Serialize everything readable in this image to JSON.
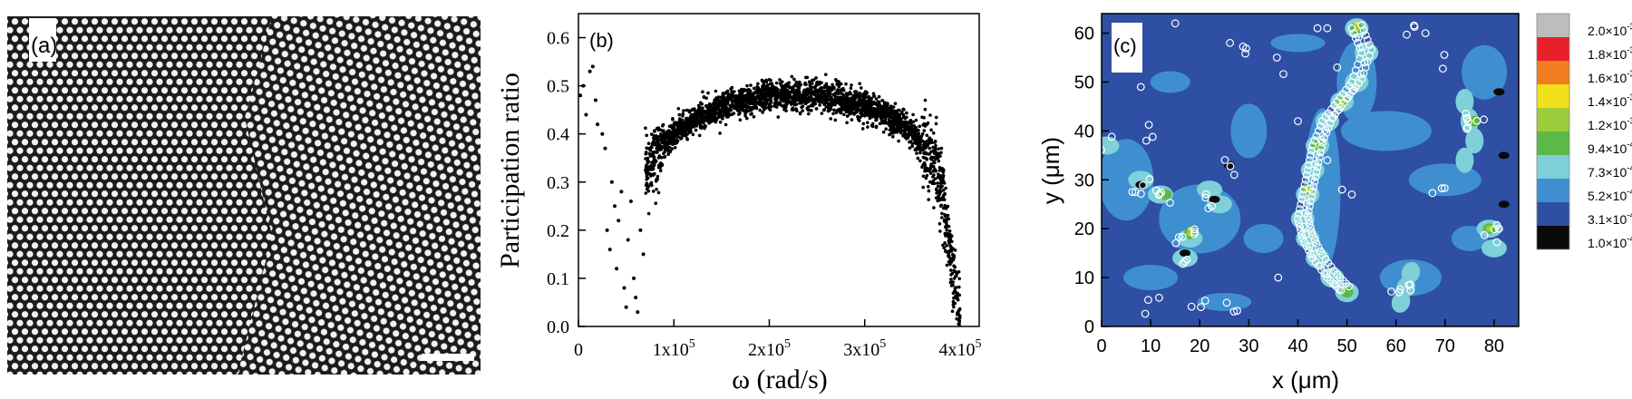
{
  "panels": {
    "a": {
      "label": "(a)"
    },
    "b": {
      "label": "(b)"
    },
    "c": {
      "label": "(c)"
    }
  },
  "chart_data": [
    {
      "type": "image",
      "panel": "(a)",
      "description_visible": "micrograph of hexagonal colloidal crystal with grain boundary, scale bar bottom-right"
    },
    {
      "type": "scatter",
      "panel": "(b)",
      "xlabel": "ω (rad/s)",
      "ylabel": "Participation ratio",
      "xlim": [
        0,
        420000
      ],
      "ylim": [
        0,
        0.65
      ],
      "xticks": [
        {
          "value": 0,
          "label": "0"
        },
        {
          "value": 100000,
          "label": "1x10",
          "exp": "5"
        },
        {
          "value": 200000,
          "label": "2x10",
          "exp": "5"
        },
        {
          "value": 300000,
          "label": "3x10",
          "exp": "5"
        },
        {
          "value": 400000,
          "label": "4x10",
          "exp": "5"
        }
      ],
      "yticks": [
        "0.0",
        "0.1",
        "0.2",
        "0.3",
        "0.4",
        "0.5",
        "0.6"
      ],
      "yvalues": [
        0,
        0.1,
        0.2,
        0.3,
        0.4,
        0.5,
        0.6
      ],
      "envelope": [
        [
          70000,
          0.33
        ],
        [
          100000,
          0.4
        ],
        [
          130000,
          0.44
        ],
        [
          160000,
          0.46
        ],
        [
          200000,
          0.48
        ],
        [
          250000,
          0.48
        ],
        [
          300000,
          0.46
        ],
        [
          340000,
          0.42
        ],
        [
          360000,
          0.38
        ],
        [
          380000,
          0.3
        ],
        [
          390000,
          0.15
        ],
        [
          400000,
          0.01
        ]
      ],
      "low_freq_points": [
        [
          2000,
          0.48
        ],
        [
          5000,
          0.5
        ],
        [
          8000,
          0.44
        ],
        [
          12000,
          0.53
        ],
        [
          15000,
          0.54
        ],
        [
          18000,
          0.47
        ],
        [
          20000,
          0.42
        ],
        [
          25000,
          0.4
        ],
        [
          28000,
          0.37
        ],
        [
          30000,
          0.2
        ],
        [
          33000,
          0.16
        ],
        [
          35000,
          0.3
        ],
        [
          38000,
          0.25
        ],
        [
          40000,
          0.12
        ],
        [
          42000,
          0.22
        ],
        [
          45000,
          0.28
        ],
        [
          48000,
          0.08
        ],
        [
          50000,
          0.04
        ],
        [
          52000,
          0.18
        ],
        [
          55000,
          0.26
        ],
        [
          58000,
          0.1
        ],
        [
          60000,
          0.06
        ],
        [
          62000,
          0.03
        ],
        [
          65000,
          0.2
        ],
        [
          68000,
          0.15
        ]
      ]
    },
    {
      "type": "heatmap",
      "panel": "(c)",
      "xlabel": "x (μm)",
      "ylabel": "y (μm)",
      "xlim": [
        0,
        85
      ],
      "ylim": [
        0,
        64
      ],
      "xticks": [
        "0",
        "10",
        "20",
        "30",
        "40",
        "50",
        "60",
        "70",
        "80"
      ],
      "xvalues": [
        0,
        10,
        20,
        30,
        40,
        50,
        60,
        70,
        80
      ],
      "yticks": [
        "0",
        "10",
        "20",
        "30",
        "40",
        "50",
        "60"
      ],
      "yvalues": [
        0,
        10,
        20,
        30,
        40,
        50,
        60
      ],
      "colorbar": [
        {
          "label": "2.0×10",
          "exp": "-3",
          "color": "#bdbdbd"
        },
        {
          "label": "1.8×10",
          "exp": "-3",
          "color": "#e8202a"
        },
        {
          "label": "1.6×10",
          "exp": "-3",
          "color": "#f07d1f"
        },
        {
          "label": "1.4×10",
          "exp": "-3",
          "color": "#f2e01c"
        },
        {
          "label": "1.2×10",
          "exp": "-3",
          "color": "#9ccd3c"
        },
        {
          "label": "9.4×10",
          "exp": "-4",
          "color": "#5cb848"
        },
        {
          "label": "7.3×10",
          "exp": "-4",
          "color": "#7fd0d8"
        },
        {
          "label": "5.2×10",
          "exp": "-4",
          "color": "#3f8fd0"
        },
        {
          "label": "3.1×10",
          "exp": "-4",
          "color": "#2e4fa4"
        },
        {
          "label": "1.0×10",
          "exp": "-4",
          "color": "#0a0a0a"
        }
      ],
      "background_color": "#2e4fa4"
    }
  ]
}
